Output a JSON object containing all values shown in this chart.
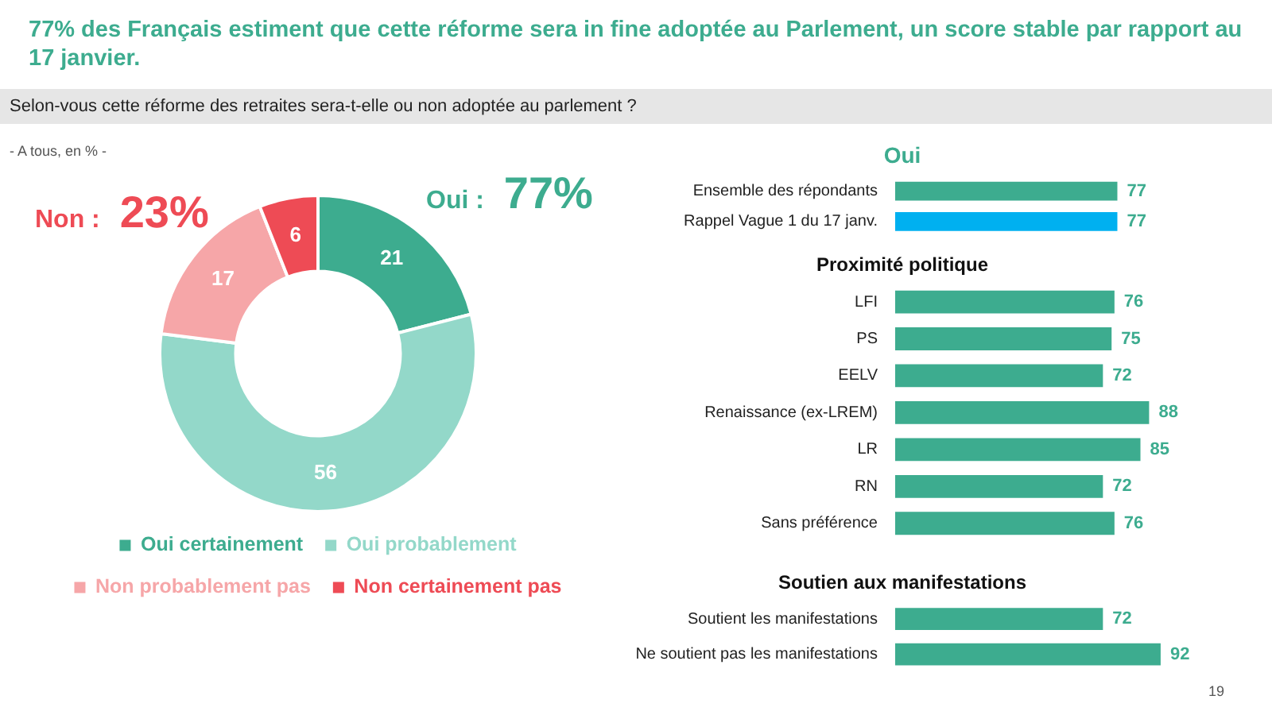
{
  "chart_data": [
    {
      "type": "donut",
      "title": "77% des Français estiment que cette réforme sera in fine adoptée au Parlement, un score stable par rapport au 17 janvier.",
      "subtitle": "Selon-vous cette réforme des retraites sera-t-elle ou non adoptée au parlement ?",
      "annotations": [
        "- A tous, en % -",
        "Oui : 77%",
        "Non : 23%"
      ],
      "categories": [
        "Oui certainement",
        "Oui probablement",
        "Non probablement pas",
        "Non certainement pas"
      ],
      "values": [
        21,
        56,
        17,
        6
      ],
      "colors": [
        "#3dac8f",
        "#93d8c9",
        "#f6a6a8",
        "#ee4b55"
      ],
      "data_labels": true,
      "legend": "bottom"
    },
    {
      "type": "bar",
      "orientation": "horizontal",
      "title": "Oui",
      "categories": [
        "Ensemble des répondants",
        "Rappel Vague 1 du 17 janv."
      ],
      "values": [
        77,
        77
      ],
      "colors": [
        "#3dac8f",
        "#00b0f0"
      ],
      "data_labels": true,
      "tick_labels": "y"
    },
    {
      "type": "bar",
      "orientation": "horizontal",
      "title": "Proximité politique",
      "categories": [
        "LFI",
        "PS",
        "EELV",
        "Renaissance (ex-LREM)",
        "LR",
        "RN",
        "Sans préférence"
      ],
      "values": [
        76,
        75,
        72,
        88,
        85,
        72,
        76
      ],
      "colors": [
        "#3dac8f",
        "#3dac8f",
        "#3dac8f",
        "#3dac8f",
        "#3dac8f",
        "#3dac8f",
        "#3dac8f"
      ],
      "data_labels": true,
      "tick_labels": "y"
    },
    {
      "type": "bar",
      "orientation": "horizontal",
      "title": "Soutien aux manifestations",
      "categories": [
        "Soutient les manifestations",
        "Ne soutient pas les manifestations"
      ],
      "values": [
        72,
        92
      ],
      "colors": [
        "#3dac8f",
        "#3dac8f"
      ],
      "data_labels": true,
      "tick_labels": "y",
      "annotations": [
        "19"
      ]
    }
  ]
}
